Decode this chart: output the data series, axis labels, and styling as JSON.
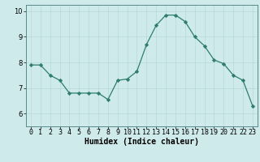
{
  "x": [
    0,
    1,
    2,
    3,
    4,
    5,
    6,
    7,
    8,
    9,
    10,
    11,
    12,
    13,
    14,
    15,
    16,
    17,
    18,
    19,
    20,
    21,
    22,
    23
  ],
  "y": [
    7.9,
    7.9,
    7.5,
    7.3,
    6.8,
    6.8,
    6.8,
    6.8,
    6.55,
    7.3,
    7.35,
    7.65,
    8.7,
    9.45,
    9.85,
    9.85,
    9.6,
    9.0,
    8.65,
    8.1,
    7.95,
    7.5,
    7.3,
    6.3
  ],
  "xlabel": "Humidex (Indice chaleur)",
  "ylim": [
    5.5,
    10.25
  ],
  "xlim": [
    -0.5,
    23.5
  ],
  "yticks": [
    6,
    7,
    8,
    9,
    10
  ],
  "bg_color": "#ceeaea",
  "line_color": "#2e7d6e",
  "marker_color": "#2e7d6e",
  "grid_color": "#b8d8d8",
  "axis_bg": "#ceeaea",
  "xlabel_fontsize": 7,
  "tick_fontsize": 6,
  "spine_color": "#5a8a8a"
}
